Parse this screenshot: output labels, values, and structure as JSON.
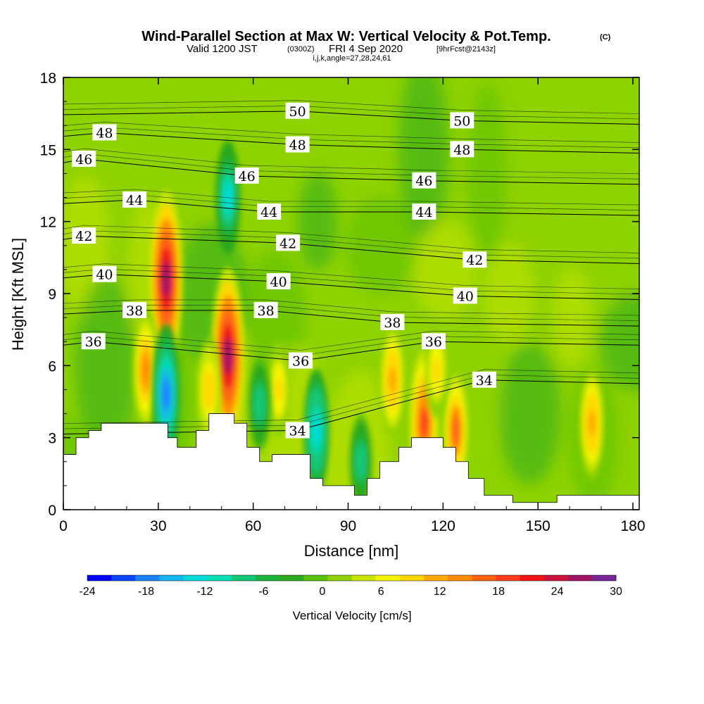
{
  "title": {
    "main": "Wind-Parallel Section at Max W: Vertical Velocity & Pot.Temp.",
    "copyright": "(C)",
    "line2_a": "Valid 1200 JST",
    "line2_b": "(0300Z)",
    "line2_c": "FRI 4 Sep 2020",
    "line2_d": "[9hrFcst@2143z]",
    "line3": "i,j,k,angle=27,28,24,61"
  },
  "chart_data": {
    "type": "heatmap",
    "xlabel": "Distance [nm]",
    "ylabel": "Height [Kft MSL]",
    "xlim": [
      0,
      182
    ],
    "ylim": [
      0,
      18
    ],
    "xticks": [
      0,
      30,
      60,
      90,
      120,
      150,
      180
    ],
    "yticks": [
      0,
      3,
      6,
      9,
      12,
      15,
      18
    ],
    "colorbar": {
      "title": "Vertical Velocity [cm/s]",
      "min": -24,
      "max": 30,
      "ticks": [
        -24,
        -18,
        -12,
        -6,
        0,
        6,
        12,
        18,
        24,
        30
      ],
      "colors": [
        "#0000ff",
        "#0a46ff",
        "#1a82ff",
        "#16b4f0",
        "#00dcdc",
        "#00dcb4",
        "#14c878",
        "#1eb43c",
        "#2ca81e",
        "#5ac00a",
        "#8ed200",
        "#c8e600",
        "#f5f500",
        "#ffd700",
        "#ffaa00",
        "#ff8c00",
        "#ff6414",
        "#ff3c1e",
        "#f01414",
        "#c8143c",
        "#a01464",
        "#782896"
      ]
    },
    "grid": false,
    "terrain_height": [
      {
        "x": 0,
        "y": 2.3
      },
      {
        "x": 4,
        "y": 3.0
      },
      {
        "x": 8,
        "y": 3.3
      },
      {
        "x": 12,
        "y": 3.6
      },
      {
        "x": 24,
        "y": 3.6
      },
      {
        "x": 30,
        "y": 3.6
      },
      {
        "x": 33,
        "y": 3.0
      },
      {
        "x": 36,
        "y": 2.6
      },
      {
        "x": 42,
        "y": 3.3
      },
      {
        "x": 46,
        "y": 4.0
      },
      {
        "x": 54,
        "y": 3.6
      },
      {
        "x": 58,
        "y": 2.6
      },
      {
        "x": 62,
        "y": 2.0
      },
      {
        "x": 66,
        "y": 2.3
      },
      {
        "x": 75,
        "y": 2.3
      },
      {
        "x": 78,
        "y": 1.3
      },
      {
        "x": 82,
        "y": 1.0
      },
      {
        "x": 86,
        "y": 1.0
      },
      {
        "x": 92,
        "y": 0.6
      },
      {
        "x": 96,
        "y": 1.3
      },
      {
        "x": 100,
        "y": 2.0
      },
      {
        "x": 106,
        "y": 2.6
      },
      {
        "x": 110,
        "y": 3.0
      },
      {
        "x": 120,
        "y": 2.6
      },
      {
        "x": 124,
        "y": 2.0
      },
      {
        "x": 128,
        "y": 1.3
      },
      {
        "x": 133,
        "y": 0.6
      },
      {
        "x": 142,
        "y": 0.3
      },
      {
        "x": 150,
        "y": 0.3
      },
      {
        "x": 156,
        "y": 0.6
      },
      {
        "x": 174,
        "y": 0.6
      },
      {
        "x": 182,
        "y": 0.6
      }
    ],
    "updrafts": [
      {
        "x": 32.5,
        "y": 9.6,
        "w": 30
      },
      {
        "x": 52,
        "y": 6.4,
        "w": 30
      },
      {
        "x": 26,
        "y": 5.8,
        "w": 16
      },
      {
        "x": 114,
        "y": 3.6,
        "w": 21
      },
      {
        "x": 104,
        "y": 5.4,
        "w": 14
      },
      {
        "x": 124,
        "y": 3.3,
        "w": 18
      },
      {
        "x": 167,
        "y": 3.6,
        "w": 14
      },
      {
        "x": 68,
        "y": 5.0,
        "w": 10
      },
      {
        "x": 46,
        "y": 5.0,
        "w": 12
      },
      {
        "x": 118,
        "y": 5.8,
        "w": 10
      }
    ],
    "downdrafts": [
      {
        "x": 32.5,
        "y": 4.8,
        "w": -20
      },
      {
        "x": 52,
        "y": 13.0,
        "w": -14
      },
      {
        "x": 80,
        "y": 3.3,
        "w": -16
      },
      {
        "x": 94,
        "y": 2.0,
        "w": -10
      },
      {
        "x": 62,
        "y": 4.4,
        "w": -10
      }
    ],
    "theta_contours": [
      {
        "value": 34,
        "labels": [
          {
            "x": 74,
            "y": 3.3
          },
          {
            "x": 133,
            "y": 5.4
          }
        ]
      },
      {
        "value": 36,
        "labels": [
          {
            "x": 9.5,
            "y": 7.0
          },
          {
            "x": 75,
            "y": 6.2
          },
          {
            "x": 117,
            "y": 7.0
          }
        ]
      },
      {
        "value": 38,
        "labels": [
          {
            "x": 22.5,
            "y": 8.3
          },
          {
            "x": 64,
            "y": 8.3
          },
          {
            "x": 104,
            "y": 7.8
          }
        ]
      },
      {
        "value": 40,
        "labels": [
          {
            "x": 13,
            "y": 9.8
          },
          {
            "x": 68,
            "y": 9.5
          },
          {
            "x": 127,
            "y": 8.9
          }
        ]
      },
      {
        "value": 42,
        "labels": [
          {
            "x": 6.5,
            "y": 11.4
          },
          {
            "x": 71,
            "y": 11.1
          },
          {
            "x": 130,
            "y": 10.4
          }
        ]
      },
      {
        "value": 44,
        "labels": [
          {
            "x": 22.5,
            "y": 12.9
          },
          {
            "x": 65,
            "y": 12.4
          },
          {
            "x": 114,
            "y": 12.4
          }
        ]
      },
      {
        "value": 46,
        "labels": [
          {
            "x": 6.5,
            "y": 14.6
          },
          {
            "x": 58,
            "y": 13.9
          },
          {
            "x": 114,
            "y": 13.7
          }
        ]
      },
      {
        "value": 48,
        "labels": [
          {
            "x": 13,
            "y": 15.7
          },
          {
            "x": 74,
            "y": 15.2
          },
          {
            "x": 126,
            "y": 15.0
          }
        ]
      },
      {
        "value": 50,
        "labels": [
          {
            "x": 74,
            "y": 16.6
          },
          {
            "x": 126,
            "y": 16.2
          }
        ]
      }
    ]
  }
}
